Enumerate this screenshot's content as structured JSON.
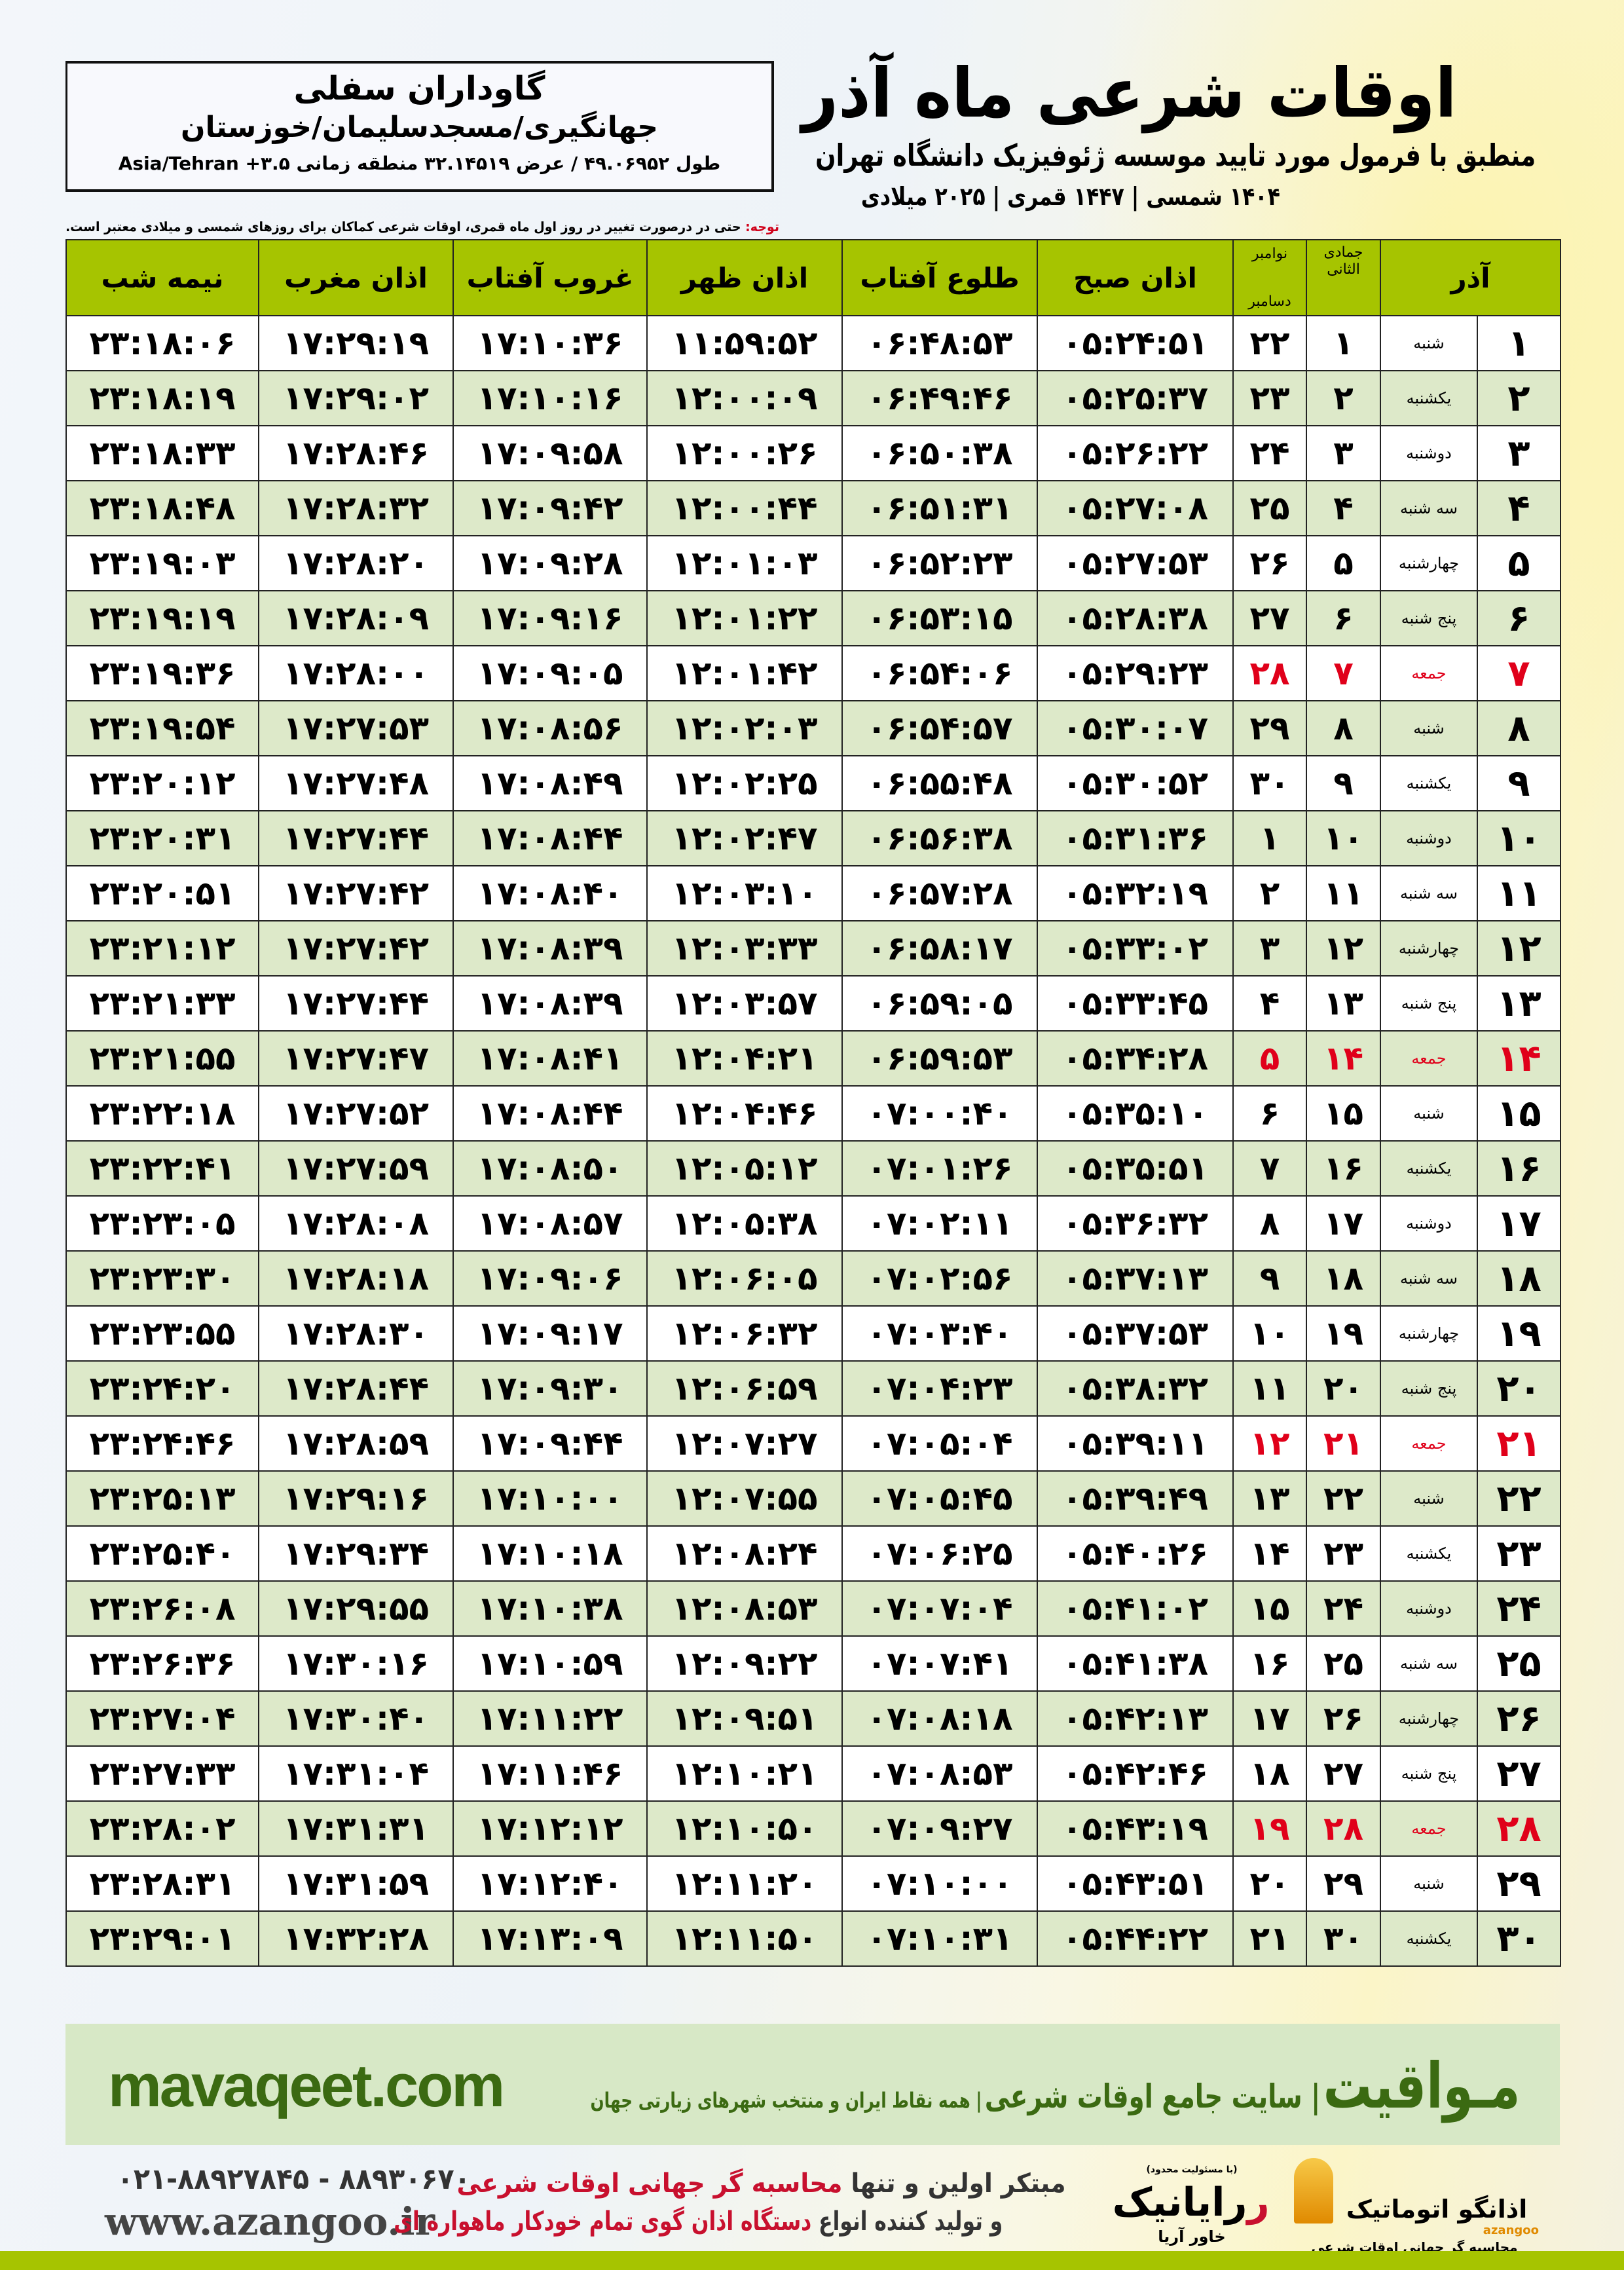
{
  "header": {
    "title": "اوقات شرعی ماه آذر",
    "subtitle": "منطبق با فرمول مورد تایید موسسه ژئوفیزیک دانشگاه تهران",
    "dates": "۱۴۰۴ شمسی | ۱۴۴۷ قمری | ۲۰۲۵ میلادی"
  },
  "location": {
    "name": "گاوداران سفلی",
    "path": "جهانگیری/مسجدسلیمان/خوزستان",
    "coords": "طول ۴۹.۰۶۹۵۲ / عرض ۳۲.۱۴۵۱۹ منطقه زمانی ۳.۵+ Asia/Tehran"
  },
  "note": {
    "label": "توجه:",
    "text": " حتی در درصورت تغییر در روز اول ماه قمری، اوقات شرعی کماکان برای روزهای شمسی و میلادی معتبر است."
  },
  "table": {
    "headers": {
      "day": "آذر",
      "qamari": "جمادی الثانی",
      "greg_top": "نوامبر",
      "greg_bottom": "دسامبر",
      "sobh": "اذان صبح",
      "tolu": "طلوع آفتاب",
      "zohr": "اذان ظهر",
      "ghorub": "غروب آفتاب",
      "maghreb": "اذان مغرب",
      "nime": "نیمه شب"
    },
    "highlight_color": "#e0001a",
    "rows": [
      [
        "۱",
        "شنبه",
        "۱",
        "۲۲",
        "۰۵:۲۴:۵۱",
        "۰۶:۴۸:۵۳",
        "۱۱:۵۹:۵۲",
        "۱۷:۱۰:۳۶",
        "۱۷:۲۹:۱۹",
        "۲۳:۱۸:۰۶"
      ],
      [
        "۲",
        "یکشنبه",
        "۲",
        "۲۳",
        "۰۵:۲۵:۳۷",
        "۰۶:۴۹:۴۶",
        "۱۲:۰۰:۰۹",
        "۱۷:۱۰:۱۶",
        "۱۷:۲۹:۰۲",
        "۲۳:۱۸:۱۹"
      ],
      [
        "۳",
        "دوشنبه",
        "۳",
        "۲۴",
        "۰۵:۲۶:۲۲",
        "۰۶:۵۰:۳۸",
        "۱۲:۰۰:۲۶",
        "۱۷:۰۹:۵۸",
        "۱۷:۲۸:۴۶",
        "۲۳:۱۸:۳۳"
      ],
      [
        "۴",
        "سه شنبه",
        "۴",
        "۲۵",
        "۰۵:۲۷:۰۸",
        "۰۶:۵۱:۳۱",
        "۱۲:۰۰:۴۴",
        "۱۷:۰۹:۴۲",
        "۱۷:۲۸:۳۲",
        "۲۳:۱۸:۴۸"
      ],
      [
        "۵",
        "چهارشنبه",
        "۵",
        "۲۶",
        "۰۵:۲۷:۵۳",
        "۰۶:۵۲:۲۳",
        "۱۲:۰۱:۰۳",
        "۱۷:۰۹:۲۸",
        "۱۷:۲۸:۲۰",
        "۲۳:۱۹:۰۳"
      ],
      [
        "۶",
        "پنج شنبه",
        "۶",
        "۲۷",
        "۰۵:۲۸:۳۸",
        "۰۶:۵۳:۱۵",
        "۱۲:۰۱:۲۲",
        "۱۷:۰۹:۱۶",
        "۱۷:۲۸:۰۹",
        "۲۳:۱۹:۱۹"
      ],
      [
        "۷",
        "جمعه",
        "۷",
        "۲۸",
        "۰۵:۲۹:۲۳",
        "۰۶:۵۴:۰۶",
        "۱۲:۰۱:۴۲",
        "۱۷:۰۹:۰۵",
        "۱۷:۲۸:۰۰",
        "۲۳:۱۹:۳۶"
      ],
      [
        "۸",
        "شنبه",
        "۸",
        "۲۹",
        "۰۵:۳۰:۰۷",
        "۰۶:۵۴:۵۷",
        "۱۲:۰۲:۰۳",
        "۱۷:۰۸:۵۶",
        "۱۷:۲۷:۵۳",
        "۲۳:۱۹:۵۴"
      ],
      [
        "۹",
        "یکشنبه",
        "۹",
        "۳۰",
        "۰۵:۳۰:۵۲",
        "۰۶:۵۵:۴۸",
        "۱۲:۰۲:۲۵",
        "۱۷:۰۸:۴۹",
        "۱۷:۲۷:۴۸",
        "۲۳:۲۰:۱۲"
      ],
      [
        "۱۰",
        "دوشنبه",
        "۱۰",
        "۱",
        "۰۵:۳۱:۳۶",
        "۰۶:۵۶:۳۸",
        "۱۲:۰۲:۴۷",
        "۱۷:۰۸:۴۴",
        "۱۷:۲۷:۴۴",
        "۲۳:۲۰:۳۱"
      ],
      [
        "۱۱",
        "سه شنبه",
        "۱۱",
        "۲",
        "۰۵:۳۲:۱۹",
        "۰۶:۵۷:۲۸",
        "۱۲:۰۳:۱۰",
        "۱۷:۰۸:۴۰",
        "۱۷:۲۷:۴۲",
        "۲۳:۲۰:۵۱"
      ],
      [
        "۱۲",
        "چهارشنبه",
        "۱۲",
        "۳",
        "۰۵:۳۳:۰۲",
        "۰۶:۵۸:۱۷",
        "۱۲:۰۳:۳۳",
        "۱۷:۰۸:۳۹",
        "۱۷:۲۷:۴۲",
        "۲۳:۲۱:۱۲"
      ],
      [
        "۱۳",
        "پنج شنبه",
        "۱۳",
        "۴",
        "۰۵:۳۳:۴۵",
        "۰۶:۵۹:۰۵",
        "۱۲:۰۳:۵۷",
        "۱۷:۰۸:۳۹",
        "۱۷:۲۷:۴۴",
        "۲۳:۲۱:۳۳"
      ],
      [
        "۱۴",
        "جمعه",
        "۱۴",
        "۵",
        "۰۵:۳۴:۲۸",
        "۰۶:۵۹:۵۳",
        "۱۲:۰۴:۲۱",
        "۱۷:۰۸:۴۱",
        "۱۷:۲۷:۴۷",
        "۲۳:۲۱:۵۵"
      ],
      [
        "۱۵",
        "شنبه",
        "۱۵",
        "۶",
        "۰۵:۳۵:۱۰",
        "۰۷:۰۰:۴۰",
        "۱۲:۰۴:۴۶",
        "۱۷:۰۸:۴۴",
        "۱۷:۲۷:۵۲",
        "۲۳:۲۲:۱۸"
      ],
      [
        "۱۶",
        "یکشنبه",
        "۱۶",
        "۷",
        "۰۵:۳۵:۵۱",
        "۰۷:۰۱:۲۶",
        "۱۲:۰۵:۱۲",
        "۱۷:۰۸:۵۰",
        "۱۷:۲۷:۵۹",
        "۲۳:۲۲:۴۱"
      ],
      [
        "۱۷",
        "دوشنبه",
        "۱۷",
        "۸",
        "۰۵:۳۶:۳۲",
        "۰۷:۰۲:۱۱",
        "۱۲:۰۵:۳۸",
        "۱۷:۰۸:۵۷",
        "۱۷:۲۸:۰۸",
        "۲۳:۲۳:۰۵"
      ],
      [
        "۱۸",
        "سه شنبه",
        "۱۸",
        "۹",
        "۰۵:۳۷:۱۳",
        "۰۷:۰۲:۵۶",
        "۱۲:۰۶:۰۵",
        "۱۷:۰۹:۰۶",
        "۱۷:۲۸:۱۸",
        "۲۳:۲۳:۳۰"
      ],
      [
        "۱۹",
        "چهارشنبه",
        "۱۹",
        "۱۰",
        "۰۵:۳۷:۵۳",
        "۰۷:۰۳:۴۰",
        "۱۲:۰۶:۳۲",
        "۱۷:۰۹:۱۷",
        "۱۷:۲۸:۳۰",
        "۲۳:۲۳:۵۵"
      ],
      [
        "۲۰",
        "پنج شنبه",
        "۲۰",
        "۱۱",
        "۰۵:۳۸:۳۲",
        "۰۷:۰۴:۲۳",
        "۱۲:۰۶:۵۹",
        "۱۷:۰۹:۳۰",
        "۱۷:۲۸:۴۴",
        "۲۳:۲۴:۲۰"
      ],
      [
        "۲۱",
        "جمعه",
        "۲۱",
        "۱۲",
        "۰۵:۳۹:۱۱",
        "۰۷:۰۵:۰۴",
        "۱۲:۰۷:۲۷",
        "۱۷:۰۹:۴۴",
        "۱۷:۲۸:۵۹",
        "۲۳:۲۴:۴۶"
      ],
      [
        "۲۲",
        "شنبه",
        "۲۲",
        "۱۳",
        "۰۵:۳۹:۴۹",
        "۰۷:۰۵:۴۵",
        "۱۲:۰۷:۵۵",
        "۱۷:۱۰:۰۰",
        "۱۷:۲۹:۱۶",
        "۲۳:۲۵:۱۳"
      ],
      [
        "۲۳",
        "یکشنبه",
        "۲۳",
        "۱۴",
        "۰۵:۴۰:۲۶",
        "۰۷:۰۶:۲۵",
        "۱۲:۰۸:۲۴",
        "۱۷:۱۰:۱۸",
        "۱۷:۲۹:۳۴",
        "۲۳:۲۵:۴۰"
      ],
      [
        "۲۴",
        "دوشنبه",
        "۲۴",
        "۱۵",
        "۰۵:۴۱:۰۲",
        "۰۷:۰۷:۰۴",
        "۱۲:۰۸:۵۳",
        "۱۷:۱۰:۳۸",
        "۱۷:۲۹:۵۵",
        "۲۳:۲۶:۰۸"
      ],
      [
        "۲۵",
        "سه شنبه",
        "۲۵",
        "۱۶",
        "۰۵:۴۱:۳۸",
        "۰۷:۰۷:۴۱",
        "۱۲:۰۹:۲۲",
        "۱۷:۱۰:۵۹",
        "۱۷:۳۰:۱۶",
        "۲۳:۲۶:۳۶"
      ],
      [
        "۲۶",
        "چهارشنبه",
        "۲۶",
        "۱۷",
        "۰۵:۴۲:۱۳",
        "۰۷:۰۸:۱۸",
        "۱۲:۰۹:۵۱",
        "۱۷:۱۱:۲۲",
        "۱۷:۳۰:۴۰",
        "۲۳:۲۷:۰۴"
      ],
      [
        "۲۷",
        "پنج شنبه",
        "۲۷",
        "۱۸",
        "۰۵:۴۲:۴۶",
        "۰۷:۰۸:۵۳",
        "۱۲:۱۰:۲۱",
        "۱۷:۱۱:۴۶",
        "۱۷:۳۱:۰۴",
        "۲۳:۲۷:۳۳"
      ],
      [
        "۲۸",
        "جمعه",
        "۲۸",
        "۱۹",
        "۰۵:۴۳:۱۹",
        "۰۷:۰۹:۲۷",
        "۱۲:۱۰:۵۰",
        "۱۷:۱۲:۱۲",
        "۱۷:۳۱:۳۱",
        "۲۳:۲۸:۰۲"
      ],
      [
        "۲۹",
        "شنبه",
        "۲۹",
        "۲۰",
        "۰۵:۴۳:۵۱",
        "۰۷:۱۰:۰۰",
        "۱۲:۱۱:۲۰",
        "۱۷:۱۲:۴۰",
        "۱۷:۳۱:۵۹",
        "۲۳:۲۸:۳۱"
      ],
      [
        "۳۰",
        "یکشنبه",
        "۳۰",
        "۲۱",
        "۰۵:۴۴:۲۲",
        "۰۷:۱۰:۳۱",
        "۱۲:۱۱:۵۰",
        "۱۷:۱۳:۰۹",
        "۱۷:۳۲:۲۸",
        "۲۳:۲۹:۰۱"
      ]
    ]
  },
  "footer": {
    "site": "mavaqeet.com",
    "brand": "مـواقیت",
    "tagline": "| سایت جامع اوقات شرعی",
    "tagline2": "| همه نقاط ایران و منتخب شهرهای زیارتی جهان",
    "phone": "۰۲۱-۸۸۹۲۷۸۴۵ - ۸۸۹۳۰۶۷۰",
    "web": "www.azangoo.ir",
    "promo1a": "مبتکر اولین و تنها ",
    "promo1b": "محاسبه گر جهانی اوقات شرعی",
    "promo2a": "و تولید کننده انواع ",
    "promo2b": "دستگاه اذان گوی تمام خودکار ماهواره ای",
    "rayanik_small": "(با مسئولیت محدود)",
    "rayanik": "رایانیک",
    "rayanik_sub": "خاور آریا",
    "azangoo": "اذانگو اتوماتیک",
    "azangoo_latin": "azangoo",
    "azangoo_sub": "محاسبه گر جهانی اوقات شرعی"
  }
}
